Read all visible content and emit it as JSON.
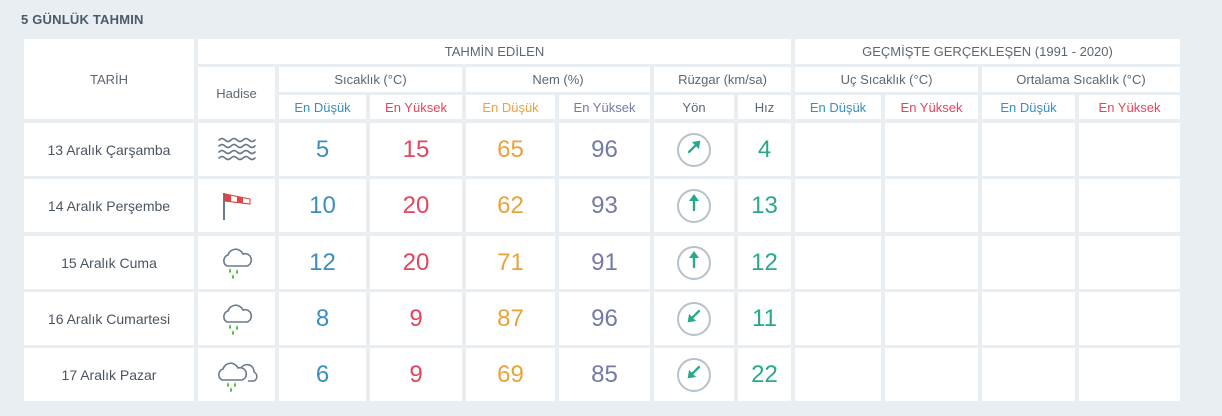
{
  "title": "5 GÜNLÜK TAHMIN",
  "headers": {
    "tarih": "TARİH",
    "tahmin_edilen": "TAHMİN EDİLEN",
    "gecmiste": "GEÇMİŞTE GERÇEKLEŞEN (1991 - 2020)",
    "hadise": "Hadise",
    "sicaklik": "Sıcaklık (°C)",
    "nem": "Nem (%)",
    "ruzgar": "Rüzgar (km/sa)",
    "uc_sicaklik": "Uç Sıcaklık (°C)",
    "ortalama_sicaklik": "Ortalama Sıcaklık (°C)",
    "en_dusuk": "En Düşük",
    "en_yuksek": "En Yüksek",
    "yon": "Yön",
    "hiz": "Hız"
  },
  "colors": {
    "min": "#3a8fc0",
    "max": "#e0475e",
    "humidity_min": "#e8a33a",
    "humidity_max": "#747aa6",
    "wind": "#2aa88e"
  },
  "rows": [
    {
      "date": "13 Aralık Çarşamba",
      "icon": "fog-icon",
      "temp_min": "5",
      "temp_max": "15",
      "hum_min": "65",
      "hum_max": "96",
      "wind_dir_icon": "arrow-northeast-icon",
      "wind_deg": 45,
      "wind_speed": "4",
      "uc_min": "",
      "uc_max": "",
      "ort_min": "",
      "ort_max": ""
    },
    {
      "date": "14 Aralık Perşembe",
      "icon": "windsock-icon",
      "temp_min": "10",
      "temp_max": "20",
      "hum_min": "62",
      "hum_max": "93",
      "wind_dir_icon": "arrow-north-icon",
      "wind_deg": 0,
      "wind_speed": "13",
      "uc_min": "",
      "uc_max": "",
      "ort_min": "",
      "ort_max": ""
    },
    {
      "date": "15 Aralık Cuma",
      "icon": "rain-cloud-icon",
      "temp_min": "12",
      "temp_max": "20",
      "hum_min": "71",
      "hum_max": "91",
      "wind_dir_icon": "arrow-north-icon",
      "wind_deg": 0,
      "wind_speed": "12",
      "uc_min": "",
      "uc_max": "",
      "ort_min": "",
      "ort_max": ""
    },
    {
      "date": "16 Aralık Cumartesi",
      "icon": "rain-cloud-icon",
      "temp_min": "8",
      "temp_max": "9",
      "hum_min": "87",
      "hum_max": "96",
      "wind_dir_icon": "arrow-southwest-icon",
      "wind_deg": 225,
      "wind_speed": "11",
      "uc_min": "",
      "uc_max": "",
      "ort_min": "",
      "ort_max": ""
    },
    {
      "date": "17 Aralık Pazar",
      "icon": "heavy-rain-cloud-icon",
      "temp_min": "6",
      "temp_max": "9",
      "hum_min": "69",
      "hum_max": "85",
      "wind_dir_icon": "arrow-southwest-icon",
      "wind_deg": 225,
      "wind_speed": "22",
      "uc_min": "",
      "uc_max": "",
      "ort_min": "",
      "ort_max": ""
    }
  ]
}
